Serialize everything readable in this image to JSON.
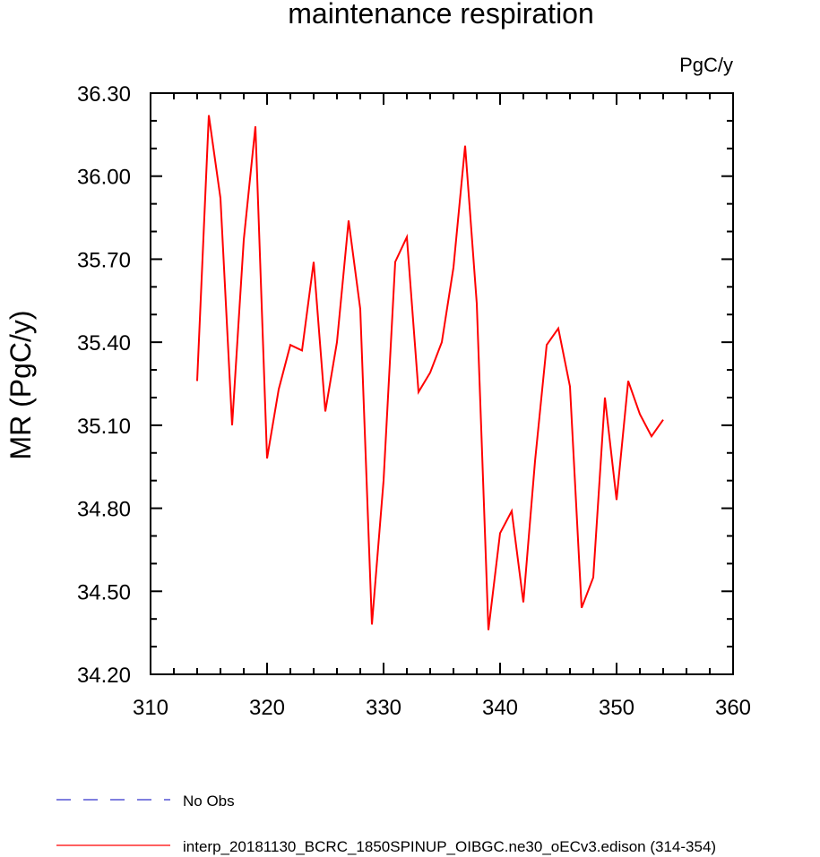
{
  "chart_data": {
    "type": "line",
    "title": "maintenance respiration",
    "units": "PgC/y",
    "xlabel": "",
    "ylabel": "MR  (PgC/y)",
    "xlim": [
      310,
      360
    ],
    "ylim": [
      34.2,
      36.3
    ],
    "xticks": [
      "310",
      "320",
      "330",
      "340",
      "350",
      "360"
    ],
    "yticks": [
      "34.20",
      "34.50",
      "34.80",
      "35.10",
      "35.40",
      "35.70",
      "36.00",
      "36.30"
    ],
    "grid": false,
    "legend_placement": "bottom-left",
    "series": [
      {
        "name": "interp_20181130_BCRC_1850SPINUP_OIBGC.ne30_oECv3.edison (314-354)",
        "color": "#ff0000",
        "dash": "solid",
        "x": [
          314,
          315,
          316,
          317,
          318,
          319,
          320,
          321,
          322,
          323,
          324,
          325,
          326,
          327,
          328,
          329,
          330,
          331,
          332,
          333,
          334,
          335,
          336,
          337,
          338,
          339,
          340,
          341,
          342,
          343,
          344,
          345,
          346,
          347,
          348,
          349,
          350,
          351,
          352,
          353,
          354
        ],
        "values": [
          35.26,
          36.22,
          35.92,
          35.1,
          35.77,
          36.18,
          34.98,
          35.23,
          35.39,
          35.37,
          35.69,
          35.15,
          35.4,
          35.84,
          35.52,
          34.38,
          34.9,
          35.69,
          35.78,
          35.22,
          35.29,
          35.4,
          35.67,
          36.11,
          35.54,
          34.36,
          34.71,
          34.79,
          34.46,
          34.97,
          35.39,
          35.45,
          35.24,
          34.44,
          34.55,
          35.2,
          34.83,
          35.26,
          35.14,
          35.06,
          35.12
        ]
      }
    ],
    "legend": [
      {
        "label": "No Obs",
        "color": "#3333cc",
        "dash": "dashed"
      },
      {
        "label": "interp_20181130_BCRC_1850SPINUP_OIBGC.ne30_oECv3.edison (314-354)",
        "color": "#ff0000",
        "dash": "solid"
      }
    ]
  }
}
